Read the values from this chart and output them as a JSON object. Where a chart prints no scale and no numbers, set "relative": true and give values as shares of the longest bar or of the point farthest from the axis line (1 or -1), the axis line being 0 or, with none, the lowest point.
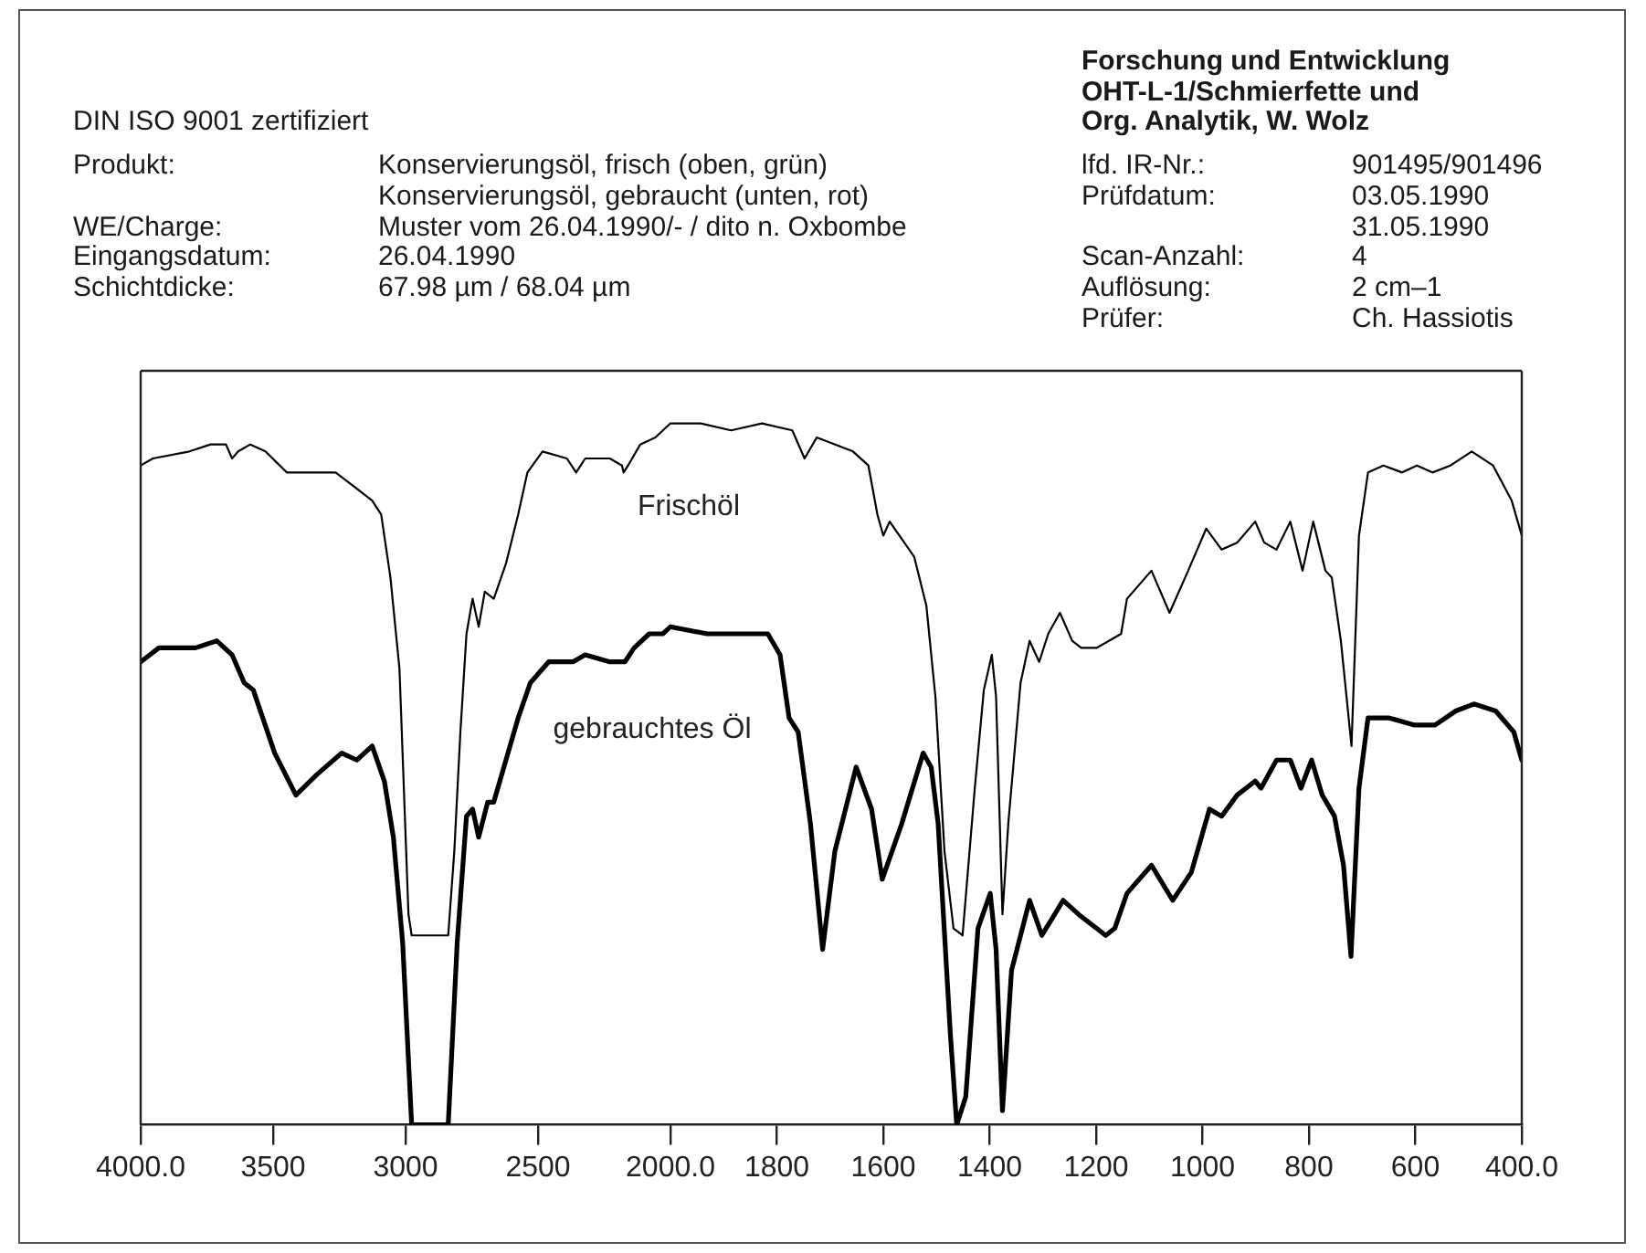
{
  "chart_data": [
    {
      "type": "line",
      "relative": true,
      "xlim": [
        4000,
        2000
      ],
      "xticks": [
        {
          "value": 4000,
          "label": "4000.0"
        },
        3500,
        3000,
        2500
      ],
      "annotations": [
        "DIN ISO 9001 zertifiziert",
        "Produkt:",
        "Konservierungsöl, frisch (oben, grün)",
        "Konservierungsöl, gebraucht (unten, rot)",
        "WE/Charge:",
        "Muster vom 26.04.1990/-  / dito n. Oxbombe",
        "Eingangsdatum:",
        "26.04.1990",
        "Schichtdicke:",
        "67.98 µm / 68.04 µm",
        "Forschung und Entwicklung",
        "OHT-L-1/Schmierfette und",
        "Org. Analytik, W. Wolz",
        "lfd. IR-Nr.:",
        "901495/901496",
        "Prüfdatum:",
        "03.05.1990",
        "31.05.1990",
        "Scan-Anzahl:",
        "4",
        "Auflösung:",
        "2 cm–1",
        "Prüfer:",
        "Ch. Hassiotis"
      ],
      "series": [
        {
          "color": "#000000",
          "x": [
            4000,
            3954,
            3816,
            3736,
            3678,
            3655,
            3632,
            3586,
            3529,
            3448,
            3356,
            3264,
            3195,
            3126,
            3092,
            3057,
            3023,
            2989,
            2977,
            2839,
            2816,
            2793,
            2770,
            2747,
            2724,
            2701,
            2667,
            2621,
            2575,
            2540,
            2483,
            2391,
            2356,
            2322,
            2229,
            2183,
            2177,
            2160,
            2114,
            2057,
            2000
          ],
          "values": [
            0.94,
            0.95,
            0.96,
            0.97,
            0.97,
            0.95,
            0.96,
            0.97,
            0.96,
            0.93,
            0.93,
            0.93,
            0.91,
            0.89,
            0.87,
            0.78,
            0.65,
            0.3,
            0.27,
            0.27,
            0.39,
            0.56,
            0.7,
            0.75,
            0.71,
            0.76,
            0.75,
            0.8,
            0.87,
            0.93,
            0.96,
            0.95,
            0.93,
            0.95,
            0.95,
            0.94,
            0.93,
            0.94,
            0.97,
            0.98,
            1.0
          ]
        },
        {
          "color": "#000000",
          "x": [
            4000,
            3931,
            3793,
            3713,
            3655,
            3609,
            3575,
            3494,
            3414,
            3333,
            3241,
            3184,
            3126,
            3080,
            3046,
            3011,
            2977,
            2839,
            2805,
            2770,
            2747,
            2724,
            2690,
            2667,
            2621,
            2575,
            2529,
            2460,
            2368,
            2322,
            2229,
            2172,
            2137,
            2080,
            2029,
            2000
          ],
          "values": [
            0.66,
            0.68,
            0.68,
            0.69,
            0.67,
            0.63,
            0.62,
            0.53,
            0.47,
            0.5,
            0.53,
            0.52,
            0.54,
            0.49,
            0.41,
            0.26,
            0.0,
            0.0,
            0.26,
            0.44,
            0.45,
            0.41,
            0.46,
            0.46,
            0.52,
            0.58,
            0.63,
            0.66,
            0.66,
            0.67,
            0.66,
            0.66,
            0.68,
            0.7,
            0.7,
            0.71
          ]
        }
      ]
    },
    {
      "type": "line",
      "relative": true,
      "xlim": [
        2000,
        400
      ],
      "xticks": [
        {
          "value": 2000,
          "label": "2000.0"
        },
        1800,
        1600,
        1400,
        1200,
        1000,
        800,
        600,
        {
          "value": 400,
          "label": "400.0"
        }
      ],
      "series": [
        {
          "name": "Frischöl",
          "color": "#000000",
          "x": [
            2000,
            1943,
            1886,
            1828,
            1771,
            1748,
            1725,
            1657,
            1628,
            1611,
            1600,
            1588,
            1542,
            1519,
            1502,
            1485,
            1468,
            1451,
            1428,
            1411,
            1396,
            1388,
            1376,
            1365,
            1342,
            1325,
            1307,
            1290,
            1268,
            1245,
            1228,
            1199,
            1176,
            1153,
            1142,
            1096,
            1062,
            1027,
            993,
            964,
            935,
            901,
            884,
            861,
            835,
            812,
            792,
            769,
            757,
            740,
            720,
            706,
            689,
            660,
            625,
            597,
            568,
            534,
            494,
            454,
            419,
            400
          ],
          "values": [
            1.0,
            1.0,
            0.99,
            1.0,
            0.99,
            0.95,
            0.98,
            0.96,
            0.94,
            0.87,
            0.84,
            0.86,
            0.81,
            0.74,
            0.61,
            0.39,
            0.28,
            0.27,
            0.48,
            0.62,
            0.67,
            0.61,
            0.3,
            0.43,
            0.63,
            0.69,
            0.66,
            0.7,
            0.73,
            0.69,
            0.68,
            0.68,
            0.69,
            0.7,
            0.75,
            0.79,
            0.73,
            0.79,
            0.85,
            0.82,
            0.83,
            0.86,
            0.83,
            0.82,
            0.86,
            0.79,
            0.86,
            0.79,
            0.78,
            0.69,
            0.54,
            0.84,
            0.93,
            0.94,
            0.93,
            0.94,
            0.93,
            0.94,
            0.96,
            0.94,
            0.89,
            0.84
          ]
        },
        {
          "name": "gebrauchtes Öl",
          "color": "#000000",
          "x": [
            2000,
            1931,
            1817,
            1794,
            1777,
            1760,
            1737,
            1714,
            1691,
            1651,
            1622,
            1602,
            1565,
            1525,
            1510,
            1497,
            1474,
            1462,
            1445,
            1422,
            1399,
            1388,
            1376,
            1359,
            1325,
            1302,
            1262,
            1233,
            1199,
            1182,
            1165,
            1142,
            1096,
            1056,
            1021,
            987,
            964,
            935,
            901,
            890,
            861,
            835,
            815,
            795,
            775,
            752,
            735,
            721,
            706,
            689,
            649,
            603,
            563,
            524,
            490,
            449,
            415,
            400
          ],
          "values": [
            0.71,
            0.7,
            0.7,
            0.67,
            0.58,
            0.56,
            0.43,
            0.25,
            0.39,
            0.51,
            0.45,
            0.35,
            0.43,
            0.53,
            0.51,
            0.43,
            0.13,
            0.0,
            0.04,
            0.28,
            0.33,
            0.25,
            0.02,
            0.22,
            0.32,
            0.27,
            0.32,
            0.3,
            0.28,
            0.27,
            0.28,
            0.33,
            0.37,
            0.32,
            0.36,
            0.45,
            0.44,
            0.47,
            0.49,
            0.48,
            0.52,
            0.52,
            0.48,
            0.52,
            0.47,
            0.44,
            0.37,
            0.24,
            0.48,
            0.58,
            0.58,
            0.57,
            0.57,
            0.59,
            0.6,
            0.59,
            0.56,
            0.52
          ]
        }
      ]
    }
  ]
}
